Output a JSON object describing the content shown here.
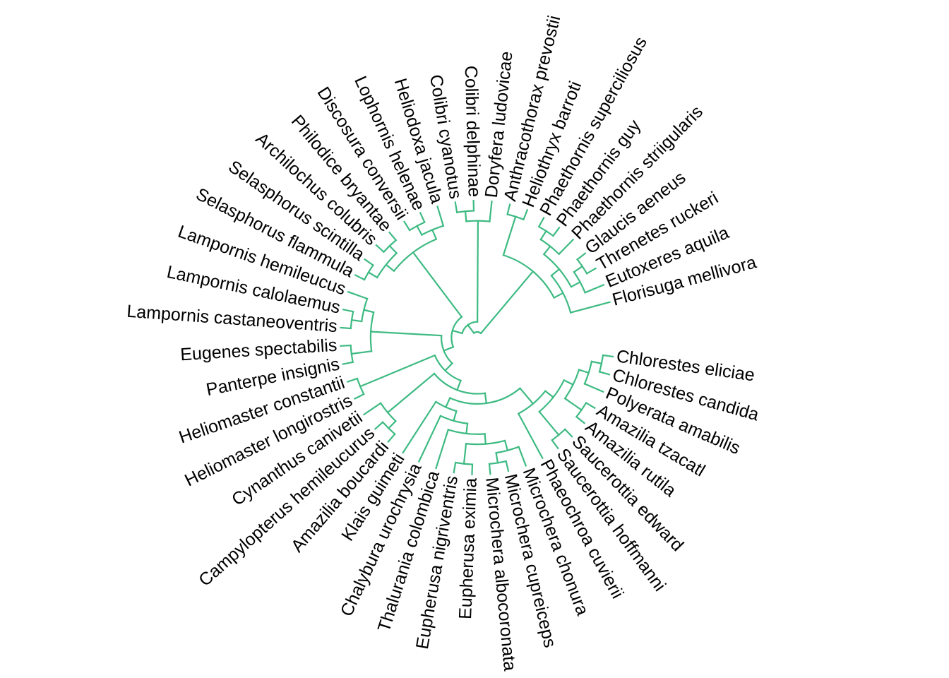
{
  "tree": {
    "branch_color": "#3dba82",
    "label_color": "#000000",
    "tips": [
      "Florisuga mellivora",
      "Eutoxeres aquila",
      "Threnetes ruckeri",
      "Glaucis aeneus",
      "Phaethornis striigularis",
      "Phaethornis guy",
      "Phaethornis superciliosus",
      "Heliothryx barroti",
      "Anthracothorax prevostii",
      "Doryfera ludovicae",
      "Colibri delphinae",
      "Colibri cyanotus",
      "Heliodoxa jacula",
      "Lophornis helenae",
      "Discosura conversii",
      "Philodice bryantae",
      "Archilochus colubris",
      "Selasphorus scintilla",
      "Selasphorus flammula",
      "Lampornis hemileucus",
      "Lampornis calolaemus",
      "Lampornis castaneoventris",
      "Eugenes spectabilis",
      "Panterpe insignis",
      "Heliomaster constantii",
      "Heliomaster longirostris",
      "Cynanthus canivetii",
      "Campylopterus hemileucurus",
      "Amazilia boucardi",
      "Klais guimeti",
      "Chalybura urochrysia",
      "Thalurania colombica",
      "Eupherusa nigriventris",
      "Eupherusa eximia",
      "Microchera albocoronata",
      "Microchera cupreiceps",
      "Microchera chonura",
      "Phaeochroa cuvierii",
      "Saucerottia hoffmanni",
      "Saucerottia edward",
      "Amazilia rutila",
      "Amazilia tzacatl",
      "Polyerata amabilis",
      "Chlorestes candida",
      "Chlorestes eliciae"
    ],
    "topology": [
      [
        [
          0,
          [
            [
              1,
              [
                2,
                3
              ]
            ],
            [
              4,
              [
                5,
                6
              ]
            ]
          ]
        ],
        [
          7,
          8
        ]
      ],
      [
        [
          9,
          [
            10,
            11
          ]
        ],
        [
          [
            [
              12,
              [
                13,
                14
              ]
            ],
            [
              [
                15,
                16
              ],
              [
                17,
                18
              ]
            ]
          ],
          [
            [
              [
                19,
                [
                  20,
                  21
                ]
              ],
              [
                22,
                23
              ]
            ],
            [
              [
                24,
                25
              ],
              [
                [
                  26,
                  [
                    27,
                    28
                  ]
                ],
                [
                  [
                    29,
                    [
                      30,
                      [
                        31,
                        [
                          [
                            32,
                            33
                          ],
                          [
                            [
                              34,
                              35
                            ],
                            36
                          ]
                        ]
                      ]
                    ]
                  ],
                  [
                    37,
                    [
                      [
                        38,
                        39
                      ],
                      [
                        [
                          40,
                          41
                        ],
                        [
                          42,
                          [
                            43,
                            44
                          ]
                        ]
                      ]
                    ]
                  ]
                ]
              ]
            ]
          ]
        ]
      ]
    ]
  }
}
